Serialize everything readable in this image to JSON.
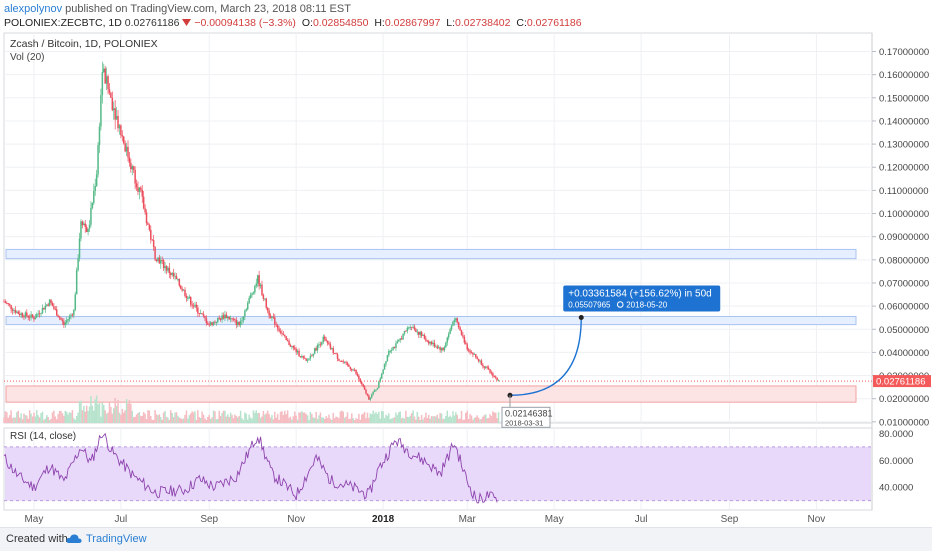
{
  "header": {
    "author": "alexpolynov",
    "published_text": "published on TradingView.com, March 23, 2018 08:11 EST",
    "symbol": "POLONIEX:ZECBTC, 1D",
    "last": "0.02761186",
    "change": "−0.00094138 (−3.3%)",
    "o_label": "O:",
    "o": "0.02854850",
    "h_label": "H:",
    "h": "0.02867997",
    "l_label": "L:",
    "l": "0.02738402",
    "c_label": "C:",
    "c": "0.02761186",
    "down_icon": "triangle-down-icon"
  },
  "footer": {
    "created_with": "Created with",
    "brand": "TradingView",
    "logo_icon": "tradingview-cloud-icon"
  },
  "chart_data": {
    "type": "candlestick",
    "title": "Zcash / Bitcoin, 1D, POLONIEX",
    "volume_label": "Vol (20)",
    "colors": {
      "up": "#53b987",
      "down": "#eb4d5c",
      "rsi": "#8e44ad",
      "rsi_band": "#e8d9fb",
      "zone_blue": "#e6efff",
      "zone_red": "#fde4e4",
      "projection": "#1e73d2",
      "price_tag": "#f45a5a"
    },
    "x_tick_labels": [
      "May",
      "Jul",
      "Sep",
      "Nov",
      "2018",
      "Mar",
      "May",
      "Jul",
      "Sep",
      "Nov"
    ],
    "x_tick_dates": [
      "2017-05-01",
      "2017-07-01",
      "2017-09-01",
      "2017-11-01",
      "2018-01-01",
      "2018-03-01",
      "2018-05-01",
      "2018-07-01",
      "2018-09-01",
      "2018-11-01"
    ],
    "x_range": [
      "2017-04-10",
      "2018-12-10"
    ],
    "y_range": [
      0.0095,
      0.178
    ],
    "y_ticks": [
      "0.17000000",
      "0.16000000",
      "0.15000000",
      "0.14000000",
      "0.13000000",
      "0.12000000",
      "0.11000000",
      "0.10000000",
      "0.09000000",
      "0.08000000",
      "0.07000000",
      "0.06000000",
      "0.05000000",
      "0.04000000",
      "0.03000000",
      "0.02000000",
      "0.01000000"
    ],
    "price_path": [
      [
        "2017-04-10",
        0.062
      ],
      [
        "2017-04-20",
        0.057
      ],
      [
        "2017-05-01",
        0.055
      ],
      [
        "2017-05-12",
        0.062
      ],
      [
        "2017-05-22",
        0.052
      ],
      [
        "2017-05-29",
        0.058
      ],
      [
        "2017-06-03",
        0.098
      ],
      [
        "2017-06-08",
        0.092
      ],
      [
        "2017-06-14",
        0.118
      ],
      [
        "2017-06-18",
        0.162
      ],
      [
        "2017-06-25",
        0.148
      ],
      [
        "2017-07-05",
        0.127
      ],
      [
        "2017-07-15",
        0.108
      ],
      [
        "2017-07-25",
        0.082
      ],
      [
        "2017-08-08",
        0.072
      ],
      [
        "2017-08-20",
        0.061
      ],
      [
        "2017-09-01",
        0.052
      ],
      [
        "2017-09-12",
        0.056
      ],
      [
        "2017-09-22",
        0.052
      ],
      [
        "2017-10-05",
        0.072
      ],
      [
        "2017-10-12",
        0.058
      ],
      [
        "2017-10-25",
        0.045
      ],
      [
        "2017-11-08",
        0.036
      ],
      [
        "2017-11-20",
        0.046
      ],
      [
        "2017-12-01",
        0.037
      ],
      [
        "2017-12-12",
        0.032
      ],
      [
        "2017-12-22",
        0.02
      ],
      [
        "2017-12-28",
        0.025
      ],
      [
        "2018-01-05",
        0.041
      ],
      [
        "2018-01-10",
        0.043
      ],
      [
        "2018-01-20",
        0.052
      ],
      [
        "2018-02-01",
        0.045
      ],
      [
        "2018-02-12",
        0.041
      ],
      [
        "2018-02-20",
        0.055
      ],
      [
        "2018-03-01",
        0.042
      ],
      [
        "2018-03-10",
        0.036
      ],
      [
        "2018-03-23",
        0.0276
      ]
    ],
    "zones": [
      {
        "from": 0.0805,
        "to": 0.0845,
        "color": "zone_blue"
      },
      {
        "from": 0.052,
        "to": 0.0555,
        "color": "zone_blue"
      },
      {
        "from": 0.0185,
        "to": 0.0255,
        "color": "zone_red"
      }
    ],
    "current_price": "0.02761186",
    "current_price_value": 0.02761186,
    "projection": {
      "start": {
        "date": "2018-03-31",
        "price": 0.02146381,
        "date_label": "2018-03-31",
        "price_label": "0.02146381"
      },
      "end": {
        "date": "2018-05-20",
        "price": 0.05507965
      },
      "line1": "+0.03361584 (+156.62%) in 50d",
      "line2": "0.05507965",
      "line2_icon": "calendar-icon",
      "line2_date": "2018-05-20"
    },
    "rsi": {
      "label": "RSI (14, close)",
      "y_range": [
        23,
        84
      ],
      "band": [
        30,
        70
      ],
      "ticks": [
        "80.0000",
        "60.0000",
        "40.0000"
      ],
      "path": [
        [
          "2017-04-10",
          62
        ],
        [
          "2017-04-20",
          48
        ],
        [
          "2017-05-01",
          40
        ],
        [
          "2017-05-12",
          56
        ],
        [
          "2017-05-22",
          44
        ],
        [
          "2017-06-03",
          70
        ],
        [
          "2017-06-10",
          58
        ],
        [
          "2017-06-18",
          81
        ],
        [
          "2017-06-25",
          66
        ],
        [
          "2017-07-10",
          48
        ],
        [
          "2017-07-25",
          36
        ],
        [
          "2017-08-15",
          38
        ],
        [
          "2017-08-25",
          46
        ],
        [
          "2017-09-05",
          40
        ],
        [
          "2017-09-20",
          48
        ],
        [
          "2017-10-05",
          79
        ],
        [
          "2017-10-15",
          50
        ],
        [
          "2017-11-01",
          34
        ],
        [
          "2017-11-15",
          62
        ],
        [
          "2017-11-25",
          45
        ],
        [
          "2017-12-10",
          40
        ],
        [
          "2017-12-22",
          34
        ],
        [
          "2017-12-28",
          52
        ],
        [
          "2018-01-10",
          75
        ],
        [
          "2018-01-20",
          66
        ],
        [
          "2018-02-01",
          58
        ],
        [
          "2018-02-10",
          50
        ],
        [
          "2018-02-20",
          73
        ],
        [
          "2018-03-01",
          44
        ],
        [
          "2018-03-08",
          30
        ],
        [
          "2018-03-16",
          34
        ],
        [
          "2018-03-23",
          29
        ]
      ]
    }
  }
}
